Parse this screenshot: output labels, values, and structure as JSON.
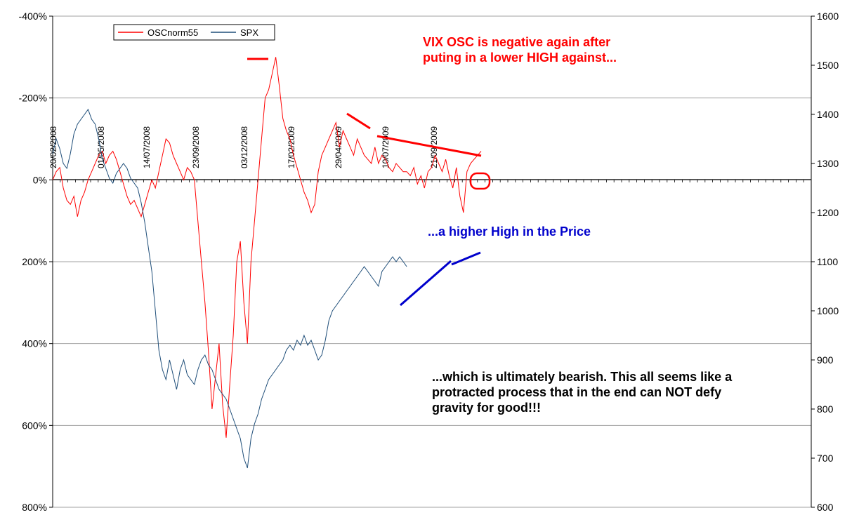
{
  "chart_data": {
    "type": "line",
    "left_axis": {
      "ticks": [
        "-400%",
        "-200%",
        "0%",
        "200%",
        "400%",
        "600%",
        "800%"
      ],
      "values": [
        -400,
        -200,
        0,
        200,
        400,
        600,
        800
      ],
      "range": [
        -400,
        800
      ],
      "reversed": true
    },
    "right_axis": {
      "ticks": [
        "1600",
        "1500",
        "1400",
        "1300",
        "1200",
        "1100",
        "1000",
        "900",
        "800",
        "700",
        "600"
      ],
      "values": [
        1600,
        1500,
        1400,
        1300,
        1200,
        1100,
        1000,
        900,
        800,
        700,
        600
      ],
      "range": [
        600,
        1600
      ]
    },
    "date_labels": [
      "20/02/2008",
      "01/05/2008",
      "14/07/2008",
      "23/09/2008",
      "03/12/2008",
      "17/02/2009",
      "29/04/2009",
      "10/07/2009",
      "21/09/2009"
    ],
    "legend": {
      "position": "top-left",
      "entries": [
        "OSCnorm55",
        "SPX"
      ]
    },
    "grid": true,
    "series": [
      {
        "name": "OSCnorm55",
        "color": "#ff0000",
        "axis": "left",
        "points": [
          [
            0,
            0
          ],
          [
            2,
            -20
          ],
          [
            4,
            -30
          ],
          [
            6,
            20
          ],
          [
            8,
            50
          ],
          [
            10,
            60
          ],
          [
            12,
            40
          ],
          [
            14,
            90
          ],
          [
            16,
            50
          ],
          [
            18,
            30
          ],
          [
            20,
            0
          ],
          [
            22,
            -20
          ],
          [
            24,
            -40
          ],
          [
            26,
            -60
          ],
          [
            28,
            -70
          ],
          [
            30,
            -40
          ],
          [
            32,
            -60
          ],
          [
            34,
            -70
          ],
          [
            36,
            -50
          ],
          [
            38,
            -20
          ],
          [
            40,
            10
          ],
          [
            42,
            40
          ],
          [
            44,
            60
          ],
          [
            46,
            50
          ],
          [
            48,
            70
          ],
          [
            50,
            90
          ],
          [
            52,
            60
          ],
          [
            54,
            30
          ],
          [
            56,
            0
          ],
          [
            58,
            20
          ],
          [
            60,
            -20
          ],
          [
            62,
            -60
          ],
          [
            64,
            -100
          ],
          [
            66,
            -90
          ],
          [
            68,
            -60
          ],
          [
            70,
            -40
          ],
          [
            72,
            -20
          ],
          [
            74,
            0
          ],
          [
            76,
            -30
          ],
          [
            78,
            -20
          ],
          [
            80,
            0
          ],
          [
            82,
            100
          ],
          [
            84,
            200
          ],
          [
            86,
            300
          ],
          [
            88,
            420
          ],
          [
            90,
            560
          ],
          [
            92,
            480
          ],
          [
            94,
            400
          ],
          [
            96,
            550
          ],
          [
            98,
            630
          ],
          [
            100,
            500
          ],
          [
            102,
            380
          ],
          [
            104,
            200
          ],
          [
            106,
            150
          ],
          [
            108,
            300
          ],
          [
            110,
            400
          ],
          [
            112,
            200
          ],
          [
            114,
            100
          ],
          [
            116,
            0
          ],
          [
            118,
            -100
          ],
          [
            120,
            -200
          ],
          [
            122,
            -220
          ],
          [
            124,
            -260
          ],
          [
            126,
            -300
          ],
          [
            128,
            -230
          ],
          [
            130,
            -150
          ],
          [
            132,
            -120
          ],
          [
            134,
            -100
          ],
          [
            136,
            -60
          ],
          [
            138,
            -30
          ],
          [
            140,
            0
          ],
          [
            142,
            30
          ],
          [
            144,
            50
          ],
          [
            146,
            80
          ],
          [
            148,
            60
          ],
          [
            150,
            -20
          ],
          [
            152,
            -60
          ],
          [
            154,
            -80
          ],
          [
            156,
            -100
          ],
          [
            158,
            -120
          ],
          [
            160,
            -140
          ],
          [
            162,
            -80
          ],
          [
            164,
            -120
          ],
          [
            166,
            -100
          ],
          [
            168,
            -80
          ],
          [
            170,
            -60
          ],
          [
            172,
            -100
          ],
          [
            174,
            -80
          ],
          [
            176,
            -60
          ],
          [
            178,
            -50
          ],
          [
            180,
            -40
          ],
          [
            182,
            -80
          ],
          [
            184,
            -40
          ],
          [
            186,
            -60
          ],
          [
            188,
            -50
          ],
          [
            190,
            -30
          ],
          [
            192,
            -20
          ],
          [
            194,
            -40
          ],
          [
            196,
            -30
          ],
          [
            198,
            -20
          ],
          [
            200,
            -20
          ],
          [
            202,
            -10
          ],
          [
            204,
            -30
          ],
          [
            206,
            10
          ],
          [
            208,
            -10
          ],
          [
            210,
            20
          ],
          [
            212,
            -20
          ],
          [
            214,
            -30
          ],
          [
            216,
            -60
          ],
          [
            218,
            -40
          ],
          [
            220,
            -20
          ],
          [
            222,
            -50
          ],
          [
            224,
            -10
          ],
          [
            226,
            20
          ],
          [
            228,
            -30
          ],
          [
            230,
            40
          ],
          [
            232,
            80
          ],
          [
            234,
            -20
          ],
          [
            236,
            -40
          ],
          [
            238,
            -50
          ],
          [
            240,
            -60
          ],
          [
            242,
            -70
          ]
        ]
      },
      {
        "name": "SPX",
        "color": "#1f4e79",
        "axis": "right",
        "points": [
          [
            0,
            1320
          ],
          [
            2,
            1350
          ],
          [
            4,
            1330
          ],
          [
            6,
            1300
          ],
          [
            8,
            1290
          ],
          [
            10,
            1320
          ],
          [
            12,
            1360
          ],
          [
            14,
            1380
          ],
          [
            16,
            1390
          ],
          [
            18,
            1400
          ],
          [
            20,
            1410
          ],
          [
            22,
            1390
          ],
          [
            24,
            1380
          ],
          [
            26,
            1350
          ],
          [
            28,
            1310
          ],
          [
            30,
            1290
          ],
          [
            32,
            1270
          ],
          [
            34,
            1260
          ],
          [
            36,
            1280
          ],
          [
            38,
            1290
          ],
          [
            40,
            1300
          ],
          [
            42,
            1290
          ],
          [
            44,
            1270
          ],
          [
            46,
            1260
          ],
          [
            48,
            1250
          ],
          [
            50,
            1220
          ],
          [
            52,
            1180
          ],
          [
            54,
            1130
          ],
          [
            56,
            1080
          ],
          [
            58,
            1000
          ],
          [
            60,
            920
          ],
          [
            62,
            880
          ],
          [
            64,
            860
          ],
          [
            66,
            900
          ],
          [
            68,
            870
          ],
          [
            70,
            840
          ],
          [
            72,
            880
          ],
          [
            74,
            900
          ],
          [
            76,
            870
          ],
          [
            78,
            860
          ],
          [
            80,
            850
          ],
          [
            82,
            880
          ],
          [
            84,
            900
          ],
          [
            86,
            910
          ],
          [
            88,
            890
          ],
          [
            90,
            880
          ],
          [
            92,
            860
          ],
          [
            94,
            840
          ],
          [
            96,
            830
          ],
          [
            98,
            820
          ],
          [
            100,
            800
          ],
          [
            102,
            780
          ],
          [
            104,
            760
          ],
          [
            106,
            740
          ],
          [
            108,
            700
          ],
          [
            110,
            680
          ],
          [
            112,
            740
          ],
          [
            114,
            770
          ],
          [
            116,
            790
          ],
          [
            118,
            820
          ],
          [
            120,
            840
          ],
          [
            122,
            860
          ],
          [
            124,
            870
          ],
          [
            126,
            880
          ],
          [
            128,
            890
          ],
          [
            130,
            900
          ],
          [
            132,
            920
          ],
          [
            134,
            930
          ],
          [
            136,
            920
          ],
          [
            138,
            940
          ],
          [
            140,
            930
          ],
          [
            142,
            950
          ],
          [
            144,
            930
          ],
          [
            146,
            940
          ],
          [
            148,
            920
          ],
          [
            150,
            900
          ],
          [
            152,
            910
          ],
          [
            154,
            940
          ],
          [
            156,
            980
          ],
          [
            158,
            1000
          ],
          [
            160,
            1010
          ],
          [
            162,
            1020
          ],
          [
            164,
            1030
          ],
          [
            166,
            1040
          ],
          [
            168,
            1050
          ],
          [
            170,
            1060
          ],
          [
            172,
            1070
          ],
          [
            174,
            1080
          ],
          [
            176,
            1090
          ],
          [
            178,
            1080
          ],
          [
            180,
            1070
          ],
          [
            182,
            1060
          ],
          [
            184,
            1050
          ],
          [
            186,
            1080
          ],
          [
            188,
            1090
          ],
          [
            190,
            1100
          ],
          [
            192,
            1110
          ],
          [
            194,
            1100
          ],
          [
            196,
            1110
          ],
          [
            198,
            1100
          ],
          [
            200,
            1090
          ]
        ]
      }
    ],
    "annotations": [
      {
        "text_lines": [
          "VIX OSC is negative again after",
          "puting in a lower HIGH against..."
        ],
        "color": "#ff0000"
      },
      {
        "text_lines": [
          "...a higher High in the Price"
        ],
        "color": "#0000cc"
      },
      {
        "text_lines": [
          "...which is ultimately bearish. This all seems like a",
          "protracted process that in the end can NOT defy",
          "gravity for good!!!"
        ],
        "color": "#000000"
      }
    ]
  }
}
